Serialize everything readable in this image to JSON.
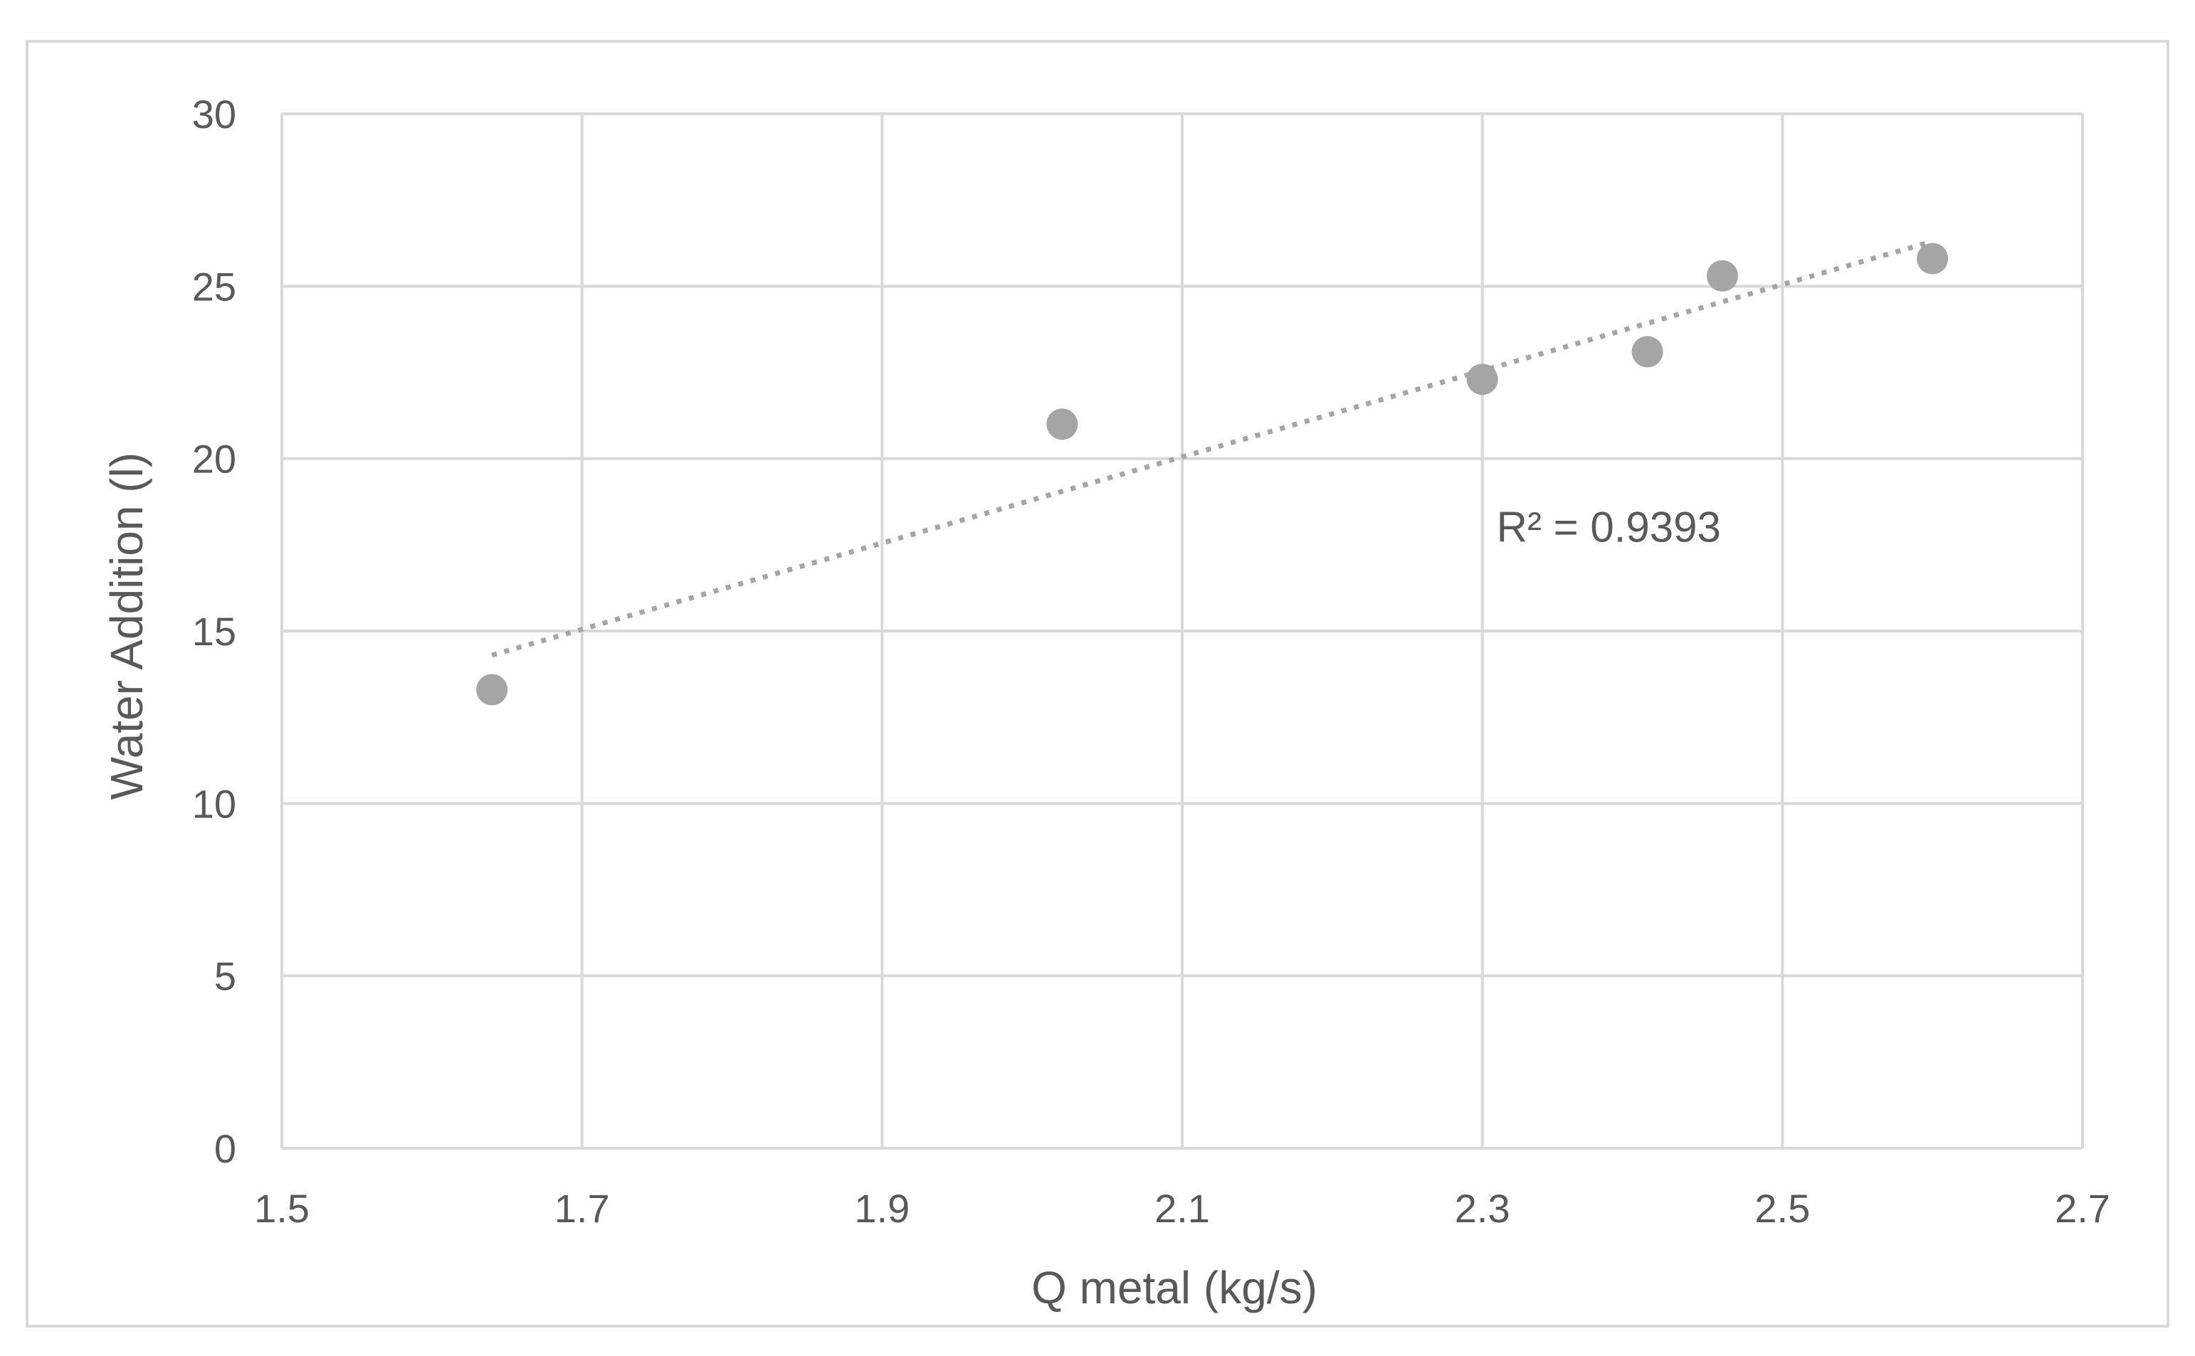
{
  "chart_data": {
    "type": "scatter",
    "title": "",
    "xlabel": "Q metal (kg/s)",
    "ylabel": "Water Addition (l)",
    "xlim": [
      1.5,
      2.7
    ],
    "ylim": [
      0,
      30
    ],
    "x_ticks": [
      "1.5",
      "1.7",
      "1.9",
      "2.1",
      "2.3",
      "2.5",
      "2.7"
    ],
    "y_ticks": [
      "0",
      "5",
      "10",
      "15",
      "20",
      "25",
      "30"
    ],
    "grid": true,
    "legend": "none",
    "series": [
      {
        "color": "#a5a5a5",
        "points": [
          {
            "x": 1.64,
            "y": 13.3
          },
          {
            "x": 2.02,
            "y": 21.0
          },
          {
            "x": 2.3,
            "y": 22.3
          },
          {
            "x": 2.41,
            "y": 23.1
          },
          {
            "x": 2.46,
            "y": 25.3
          },
          {
            "x": 2.6,
            "y": 25.8
          }
        ]
      }
    ],
    "trendline": {
      "type": "linear",
      "style": "dotted",
      "color": "#a5a5a5",
      "x_range": [
        1.64,
        2.6
      ],
      "y_range": [
        14.3,
        26.3
      ]
    },
    "annotations": [
      {
        "text": "R² = 0.9393",
        "x": 2.3,
        "y": 18.0
      }
    ],
    "colors": {
      "gridline": "#d9d9d9",
      "text": "#595959",
      "marker": "#a5a5a5",
      "border": "#d9d9d9"
    }
  }
}
